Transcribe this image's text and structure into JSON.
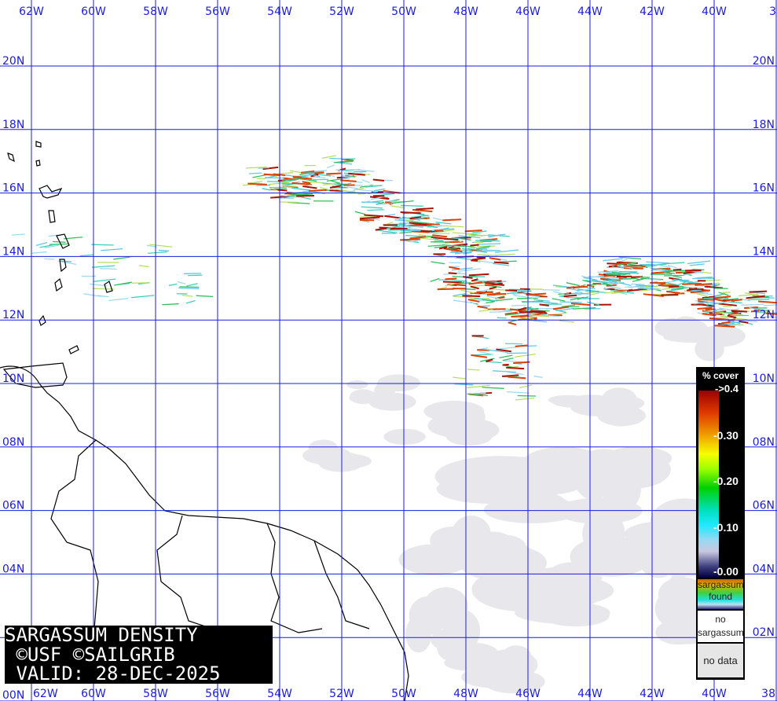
{
  "title": {
    "lines": [
      "SARGASSUM DENSITY",
      " ©USF ©SAILGRIB",
      " VALID: 28-DEC-2025"
    ]
  },
  "grid": {
    "color": "#1a1ae6",
    "longitudes": [
      "62W",
      "60W",
      "58W",
      "56W",
      "54W",
      "52W",
      "50W",
      "48W",
      "46W",
      "44W",
      "42W",
      "40W",
      "38"
    ],
    "latitudes": [
      "20N",
      "18N",
      "16N",
      "14N",
      "12N",
      "10N",
      "08N",
      "06N",
      "04N",
      "02N",
      "00N"
    ]
  },
  "legend": {
    "header": "% cover",
    "ticks": [
      "->0.4",
      "-0.30",
      "-0.20",
      "-0.10",
      "-0.00"
    ],
    "found_label": [
      "sargassum",
      "found"
    ],
    "no_sargassum_label": [
      "no",
      "sargassum"
    ],
    "no_data_label": "no data"
  },
  "colors": {
    "land_outline": "#000000",
    "no_data": "#e6e6e6",
    "high_density": "#b01000"
  }
}
